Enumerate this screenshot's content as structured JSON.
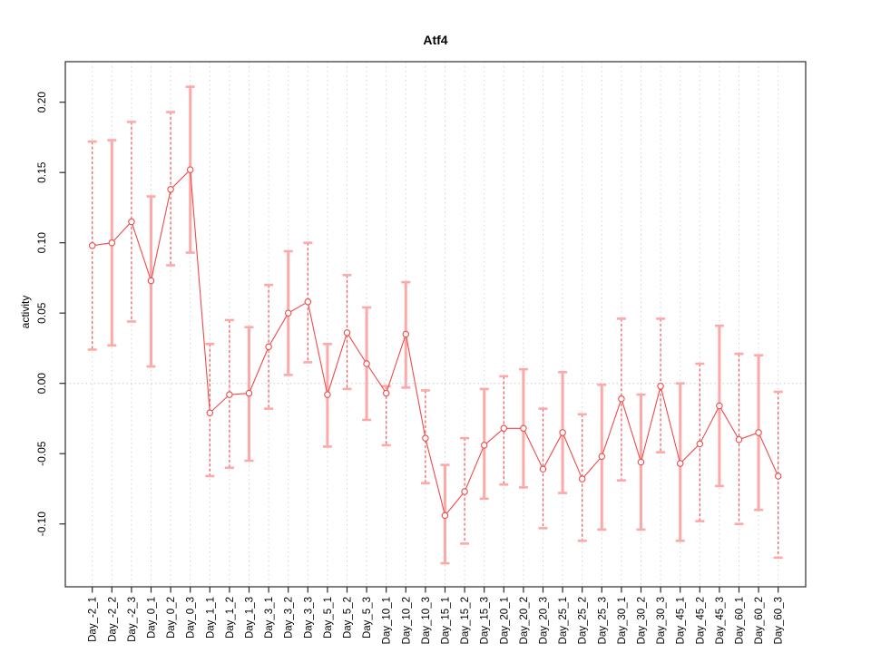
{
  "chart_data": {
    "type": "line",
    "title": "Atf4",
    "xlabel": "",
    "ylabel": "activity",
    "legend": "none",
    "grid": "dotted vertical gridline per category; dotted horizontal line at y=0",
    "ylim": [
      -0.145,
      0.229
    ],
    "yticks": [
      0.2,
      0.15,
      0.1,
      0.05,
      0.0,
      -0.05,
      -0.1
    ],
    "ytick_labels": [
      "0.20",
      "0.15",
      "0.10",
      "0.05",
      "0.00",
      "-0.05",
      "-0.10"
    ],
    "categories": [
      "Day_-2_1",
      "Day_-2_2",
      "Day_-2_3",
      "Day_0_1",
      "Day_0_2",
      "Day_0_3",
      "Day_1_1",
      "Day_1_2",
      "Day_1_3",
      "Day_3_1",
      "Day_3_2",
      "Day_3_3",
      "Day_5_1",
      "Day_5_2",
      "Day_5_3",
      "Day_10_1",
      "Day_10_2",
      "Day_10_3",
      "Day_15_1",
      "Day_15_2",
      "Day_15_3",
      "Day_20_1",
      "Day_20_2",
      "Day_20_3",
      "Day_25_1",
      "Day_25_2",
      "Day_25_3",
      "Day_30_1",
      "Day_30_2",
      "Day_30_3",
      "Day_45_1",
      "Day_45_2",
      "Day_45_3",
      "Day_60_1",
      "Day_60_2",
      "Day_60_3"
    ],
    "series": [
      {
        "name": "Atf4 activity",
        "values": [
          0.098,
          0.1,
          0.115,
          0.073,
          0.138,
          0.152,
          -0.021,
          -0.008,
          -0.007,
          0.026,
          0.05,
          0.058,
          -0.008,
          0.036,
          0.014,
          -0.007,
          0.035,
          -0.039,
          -0.094,
          -0.077,
          -0.044,
          -0.032,
          -0.032,
          -0.061,
          -0.035,
          -0.068,
          -0.052,
          -0.011,
          -0.056,
          -0.002,
          -0.057,
          -0.043,
          -0.016,
          -0.04,
          -0.035,
          -0.066
        ],
        "err_high": [
          0.172,
          0.173,
          0.186,
          0.133,
          0.193,
          0.211,
          0.028,
          0.045,
          0.04,
          0.07,
          0.094,
          0.1,
          0.028,
          0.077,
          0.054,
          -0.002,
          0.072,
          -0.005,
          -0.058,
          -0.039,
          -0.004,
          0.005,
          0.01,
          -0.018,
          0.008,
          -0.022,
          -0.001,
          0.046,
          -0.008,
          0.046,
          0.0,
          0.014,
          0.041,
          0.021,
          0.02,
          -0.006
        ],
        "err_low": [
          0.024,
          0.027,
          0.044,
          0.012,
          0.084,
          0.093,
          -0.066,
          -0.06,
          -0.055,
          -0.018,
          0.006,
          0.015,
          -0.045,
          -0.004,
          -0.026,
          -0.044,
          -0.003,
          -0.071,
          -0.128,
          -0.114,
          -0.082,
          -0.072,
          -0.074,
          -0.103,
          -0.078,
          -0.112,
          -0.104,
          -0.069,
          -0.104,
          -0.049,
          -0.112,
          -0.098,
          -0.073,
          -0.1,
          -0.09,
          -0.124
        ]
      }
    ],
    "colors": {
      "line": "#f04a4a",
      "point": "#f04a4a",
      "error_bar": "#ffa8a8",
      "error_bar_dashed": "#f25555",
      "grid": "#d6d6d6",
      "zero_line": "#c8c8c8",
      "axis": "#2b2b2b",
      "background": "#ffffff"
    }
  }
}
